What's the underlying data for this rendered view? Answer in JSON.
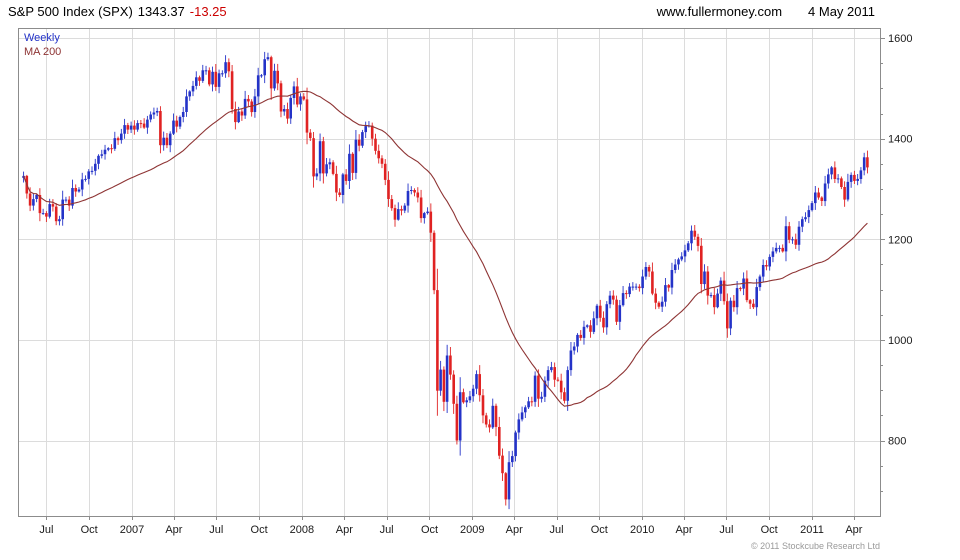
{
  "header": {
    "title": "S&P 500 Index (SPX)",
    "last_price": "1343.37",
    "change": "-13.25",
    "website": "www.fullermoney.com",
    "date": "4 May 2011"
  },
  "footer": {
    "copyright": "© 2011 Stockcube Research Ltd"
  },
  "chart_data": {
    "type": "candlestick",
    "title": "S&P 500 Index (SPX) weekly candlesticks with 200-day moving average",
    "legend": [
      {
        "label": "Weekly",
        "color": "#2433c8"
      },
      {
        "label": "MA 200",
        "color": "#8e3434"
      }
    ],
    "x_domain": [
      "2006-05-01",
      "2011-05-27"
    ],
    "first_candle_date": "2006-05-13",
    "interval_days": 7,
    "ylim": [
      650,
      1620
    ],
    "y_ticks": [
      800,
      1000,
      1200,
      1400,
      1600
    ],
    "y_minor_step": 50,
    "x_ticks": [
      {
        "label": "Jul",
        "date": "2006-07-01"
      },
      {
        "label": "Oct",
        "date": "2006-10-01"
      },
      {
        "label": "2007",
        "date": "2007-01-01"
      },
      {
        "label": "Apr",
        "date": "2007-04-01"
      },
      {
        "label": "Jul",
        "date": "2007-07-01"
      },
      {
        "label": "Oct",
        "date": "2007-10-01"
      },
      {
        "label": "2008",
        "date": "2008-01-01"
      },
      {
        "label": "Apr",
        "date": "2008-04-01"
      },
      {
        "label": "Jul",
        "date": "2008-07-01"
      },
      {
        "label": "Oct",
        "date": "2008-10-01"
      },
      {
        "label": "2009",
        "date": "2009-01-01"
      },
      {
        "label": "Apr",
        "date": "2009-04-01"
      },
      {
        "label": "Jul",
        "date": "2009-07-01"
      },
      {
        "label": "Oct",
        "date": "2009-10-01"
      },
      {
        "label": "2010",
        "date": "2010-01-01"
      },
      {
        "label": "Apr",
        "date": "2010-04-01"
      },
      {
        "label": "Jul",
        "date": "2010-07-01"
      },
      {
        "label": "Oct",
        "date": "2010-10-01"
      },
      {
        "label": "2011",
        "date": "2011-01-01"
      },
      {
        "label": "Apr",
        "date": "2011-04-01"
      }
    ],
    "ma_window_weeks": 40,
    "weekly_closes": [
      1326,
      1291,
      1267,
      1280,
      1288,
      1252,
      1252,
      1245,
      1270,
      1265,
      1236,
      1240,
      1279,
      1279,
      1267,
      1302,
      1295,
      1299,
      1319,
      1320,
      1335,
      1336,
      1350,
      1366,
      1369,
      1378,
      1381,
      1380,
      1401,
      1397,
      1410,
      1427,
      1418,
      1426,
      1418,
      1431,
      1430,
      1422,
      1438,
      1448,
      1452,
      1455,
      1387,
      1402,
      1387,
      1410,
      1436,
      1424,
      1443,
      1453,
      1484,
      1494,
      1505,
      1522,
      1515,
      1536,
      1536,
      1508,
      1533,
      1503,
      1530,
      1530,
      1552,
      1534,
      1459,
      1433,
      1454,
      1446,
      1479,
      1474,
      1453,
      1484,
      1526,
      1526,
      1558,
      1562,
      1500,
      1535,
      1510,
      1454,
      1459,
      1440,
      1481,
      1504,
      1468,
      1484,
      1478,
      1412,
      1401,
      1325,
      1331,
      1395,
      1331,
      1349,
      1353,
      1330,
      1293,
      1288,
      1329,
      1316,
      1370,
      1332,
      1398,
      1386,
      1413,
      1425,
      1426,
      1400,
      1376,
      1361,
      1350,
      1318,
      1280,
      1262,
      1239,
      1260,
      1257,
      1267,
      1296,
      1298,
      1293,
      1283,
      1242,
      1252,
      1255,
      1213,
      1099,
      899,
      941,
      877,
      969,
      931,
      873,
      800,
      896,
      876,
      880,
      888,
      903,
      932,
      890,
      850,
      832,
      826,
      869,
      827,
      770,
      735,
      683,
      757,
      769,
      816,
      842,
      856,
      866,
      878,
      877,
      929,
      883,
      887,
      919,
      940,
      946,
      921,
      919,
      896,
      879,
      940,
      979,
      987,
      1010,
      1004,
      1026,
      1029,
      1016,
      1043,
      1068,
      1044,
      1025,
      1071,
      1088,
      1080,
      1036,
      1069,
      1093,
      1091,
      1106,
      1106,
      1106,
      1103,
      1126,
      1145,
      1136,
      1092,
      1074,
      1066,
      1076,
      1109,
      1104,
      1139,
      1150,
      1160,
      1166,
      1178,
      1192,
      1217,
      1205,
      1187,
      1111,
      1136,
      1088,
      1089,
      1065,
      1092,
      1118,
      1077,
      1023,
      1078,
      1065,
      1103,
      1102,
      1122,
      1079,
      1072,
      1065,
      1105,
      1126,
      1149,
      1146,
      1165,
      1176,
      1183,
      1183,
      1176,
      1226,
      1199,
      1200,
      1189,
      1225,
      1240,
      1244,
      1258,
      1272,
      1293,
      1283,
      1276,
      1311,
      1329,
      1343,
      1320,
      1321,
      1304,
      1279,
      1314,
      1328,
      1316,
      1320,
      1337,
      1363,
      1343
    ],
    "colors": {
      "up": "#2433c8",
      "down": "#e02222",
      "ma": "#8e3434",
      "grid": "#dcdcdc",
      "border": "#8c8c8c",
      "axis_text": "#1a1a1a",
      "change_negative": "#cc0000"
    }
  }
}
